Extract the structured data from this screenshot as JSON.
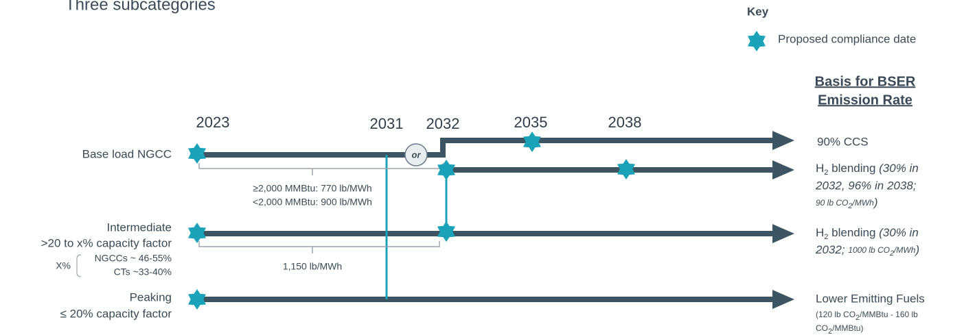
{
  "header": {
    "title": "Three subcategories"
  },
  "key": {
    "title": "Key",
    "items": [
      "Proposed compliance date"
    ]
  },
  "basis_header": [
    "Basis for BSER",
    "Emission Rate"
  ],
  "years": [
    2023,
    2031,
    2032,
    2035,
    2038
  ],
  "rows": {
    "base_load": {
      "label": "Base load NGCC",
      "bracket": [
        "≥2,000 MMBtu: 770 lb/MWh",
        "<2,000 MMBtu: 900 lb/MWh"
      ],
      "or": "or"
    },
    "intermediate": {
      "label": [
        "Intermediate",
        ">20 to x% capacity factor"
      ],
      "x_note": {
        "label": "X%",
        "items": [
          "NGCCs ~ 46-55%",
          "CTs ~33-40%"
        ]
      },
      "bracket": "1,150 lb/MWh"
    },
    "peaking": {
      "label": [
        "Peaking",
        "≤ 20% capacity factor"
      ]
    }
  },
  "outcomes": {
    "ccs": "90% CCS",
    "h2_base": [
      "H",
      "2",
      " blending ",
      "(30% in",
      "2032, 96% in 2038;",
      "90 lb CO",
      "2",
      "/MWh",
      ")"
    ],
    "h2_intermediate": [
      "H",
      "2",
      " blending ",
      "(30% in",
      "2032; ",
      "1000 lb CO",
      "2",
      "/MWh",
      ")"
    ],
    "lower": [
      "Lower Emitting Fuels",
      "(120 lb CO",
      "2",
      "/MMBtu - 160 lb",
      "CO",
      "2",
      "/MMBtu)"
    ]
  }
}
